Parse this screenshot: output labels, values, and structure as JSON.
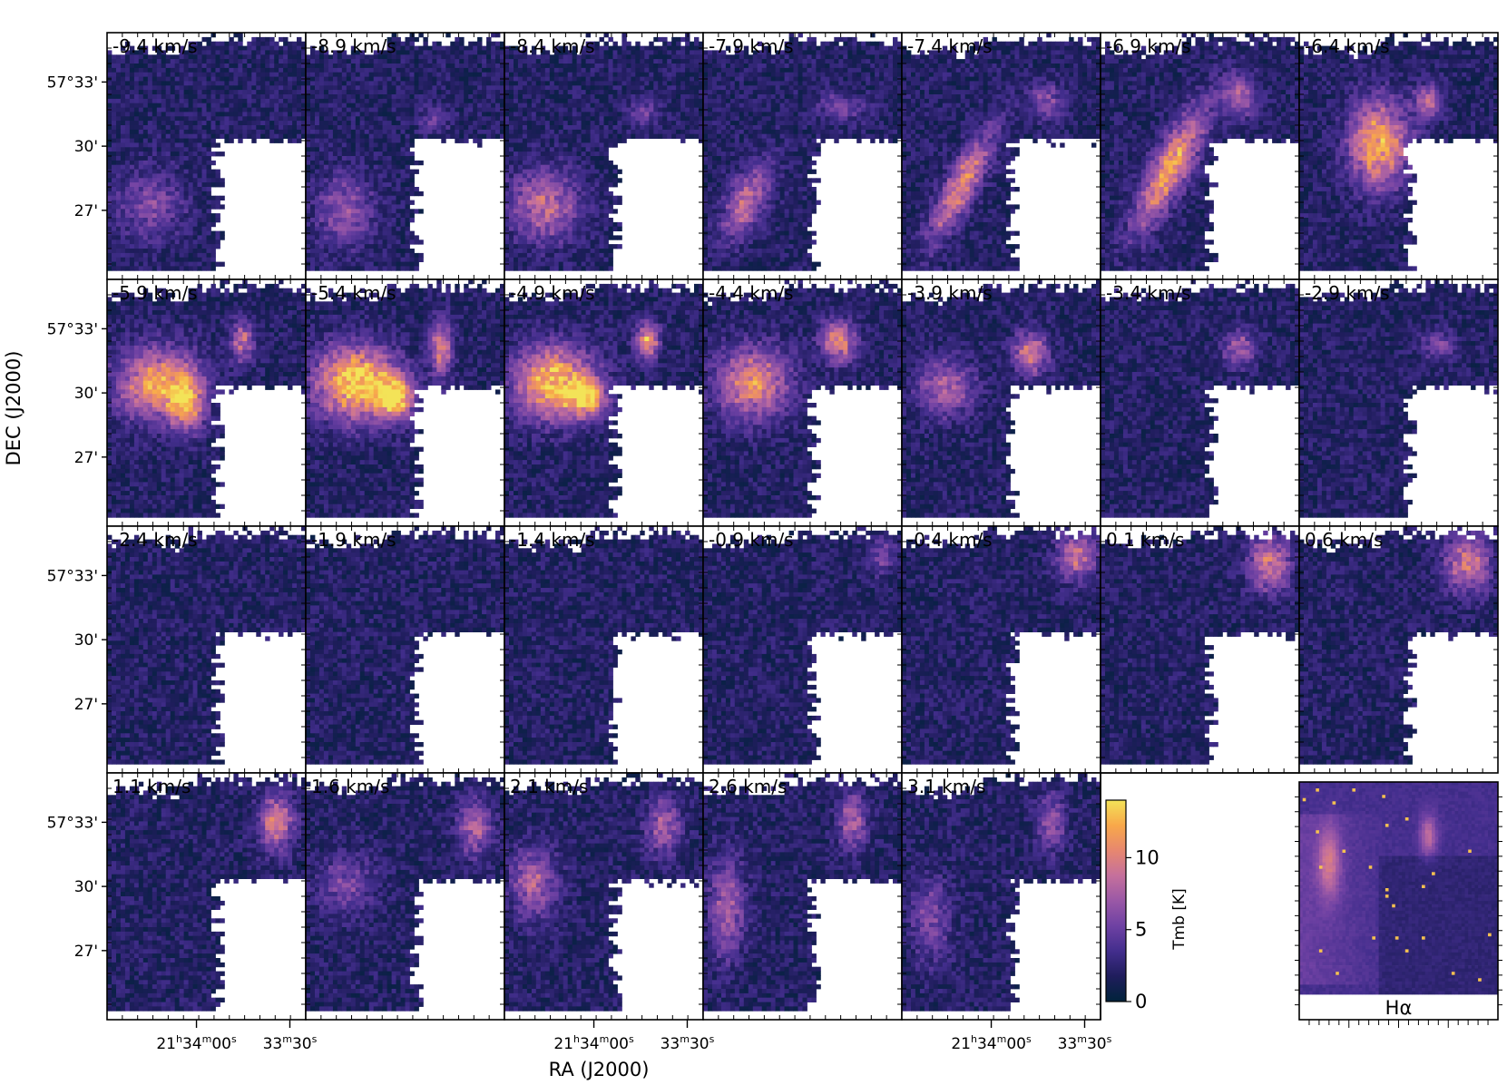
{
  "chart_data": {
    "type": "heatmap",
    "title": "",
    "xlabel": "RA (J2000)",
    "ylabel": "DEC (J2000)",
    "grid": false,
    "layout": {
      "rows": 4,
      "cols": 7
    },
    "channels": [
      {
        "label": "-9.4 km/s",
        "velocity": -9.4,
        "features": [
          {
            "x": 0.22,
            "y": 0.7,
            "sx": 0.12,
            "sy": 0.1,
            "amp": 4
          }
        ]
      },
      {
        "label": "-8.9 km/s",
        "velocity": -8.9,
        "features": [
          {
            "x": 0.2,
            "y": 0.72,
            "sx": 0.1,
            "sy": 0.1,
            "amp": 5
          },
          {
            "x": 0.65,
            "y": 0.35,
            "sx": 0.06,
            "sy": 0.04,
            "amp": 3
          }
        ]
      },
      {
        "label": "-8.4 km/s",
        "velocity": -8.4,
        "features": [
          {
            "x": 0.2,
            "y": 0.7,
            "sx": 0.12,
            "sy": 0.1,
            "amp": 7
          },
          {
            "x": 0.7,
            "y": 0.32,
            "sx": 0.05,
            "sy": 0.04,
            "amp": 4
          }
        ]
      },
      {
        "label": "-7.9 km/s",
        "velocity": -7.9,
        "features": [
          {
            "x": 0.22,
            "y": 0.68,
            "sx": 0.06,
            "sy": 0.12,
            "amp": 7,
            "ridge": true
          },
          {
            "x": 0.7,
            "y": 0.3,
            "sx": 0.08,
            "sy": 0.04,
            "amp": 4
          }
        ]
      },
      {
        "label": "-7.4 km/s",
        "velocity": -7.4,
        "features": [
          {
            "x": 0.3,
            "y": 0.62,
            "sx": 0.05,
            "sy": 0.18,
            "amp": 9,
            "ridge": true
          },
          {
            "x": 0.72,
            "y": 0.28,
            "sx": 0.06,
            "sy": 0.05,
            "amp": 5
          }
        ]
      },
      {
        "label": "-6.9 km/s",
        "velocity": -6.9,
        "features": [
          {
            "x": 0.35,
            "y": 0.55,
            "sx": 0.06,
            "sy": 0.2,
            "amp": 10,
            "ridge": true
          },
          {
            "x": 0.7,
            "y": 0.26,
            "sx": 0.06,
            "sy": 0.06,
            "amp": 6
          }
        ]
      },
      {
        "label": "-6.4 km/s",
        "velocity": -6.4,
        "features": [
          {
            "x": 0.4,
            "y": 0.45,
            "sx": 0.1,
            "sy": 0.12,
            "amp": 11
          },
          {
            "x": 0.65,
            "y": 0.28,
            "sx": 0.05,
            "sy": 0.05,
            "amp": 6
          }
        ]
      },
      {
        "label": "-5.9 km/s",
        "velocity": -5.9,
        "features": [
          {
            "x": 0.25,
            "y": 0.42,
            "sx": 0.14,
            "sy": 0.1,
            "amp": 10
          },
          {
            "x": 0.4,
            "y": 0.5,
            "sx": 0.06,
            "sy": 0.08,
            "amp": 9
          },
          {
            "x": 0.68,
            "y": 0.25,
            "sx": 0.04,
            "sy": 0.06,
            "amp": 7
          }
        ]
      },
      {
        "label": "-5.4 km/s",
        "velocity": -5.4,
        "features": [
          {
            "x": 0.25,
            "y": 0.42,
            "sx": 0.14,
            "sy": 0.1,
            "amp": 13
          },
          {
            "x": 0.45,
            "y": 0.48,
            "sx": 0.06,
            "sy": 0.06,
            "amp": 12
          },
          {
            "x": 0.68,
            "y": 0.28,
            "sx": 0.04,
            "sy": 0.08,
            "amp": 8
          }
        ]
      },
      {
        "label": "-4.9 km/s",
        "velocity": -4.9,
        "features": [
          {
            "x": 0.25,
            "y": 0.42,
            "sx": 0.14,
            "sy": 0.1,
            "amp": 12
          },
          {
            "x": 0.42,
            "y": 0.48,
            "sx": 0.06,
            "sy": 0.05,
            "amp": 10
          },
          {
            "x": 0.72,
            "y": 0.25,
            "sx": 0.04,
            "sy": 0.05,
            "amp": 10
          }
        ]
      },
      {
        "label": "-4.4 km/s",
        "velocity": -4.4,
        "features": [
          {
            "x": 0.25,
            "y": 0.42,
            "sx": 0.13,
            "sy": 0.1,
            "amp": 9
          },
          {
            "x": 0.68,
            "y": 0.25,
            "sx": 0.06,
            "sy": 0.06,
            "amp": 9
          }
        ]
      },
      {
        "label": "-3.9 km/s",
        "velocity": -3.9,
        "features": [
          {
            "x": 0.22,
            "y": 0.44,
            "sx": 0.1,
            "sy": 0.08,
            "amp": 6
          },
          {
            "x": 0.65,
            "y": 0.3,
            "sx": 0.06,
            "sy": 0.06,
            "amp": 8
          }
        ]
      },
      {
        "label": "-3.4 km/s",
        "velocity": -3.4,
        "features": [
          {
            "x": 0.7,
            "y": 0.28,
            "sx": 0.06,
            "sy": 0.05,
            "amp": 6
          }
        ]
      },
      {
        "label": "-2.9 km/s",
        "velocity": -2.9,
        "features": [
          {
            "x": 0.7,
            "y": 0.27,
            "sx": 0.06,
            "sy": 0.04,
            "amp": 4
          }
        ]
      },
      {
        "label": "-2.4 km/s",
        "velocity": -2.4,
        "features": []
      },
      {
        "label": "-1.9 km/s",
        "velocity": -1.9,
        "features": []
      },
      {
        "label": "-1.4 km/s",
        "velocity": -1.4,
        "features": []
      },
      {
        "label": "-0.9 km/s",
        "velocity": -0.9,
        "features": [
          {
            "x": 0.9,
            "y": 0.12,
            "sx": 0.05,
            "sy": 0.05,
            "amp": 4
          }
        ]
      },
      {
        "label": "-0.4 km/s",
        "velocity": -0.4,
        "features": [
          {
            "x": 0.88,
            "y": 0.12,
            "sx": 0.07,
            "sy": 0.07,
            "amp": 7
          }
        ]
      },
      {
        "label": "0.1 km/s",
        "velocity": 0.1,
        "features": [
          {
            "x": 0.85,
            "y": 0.15,
            "sx": 0.07,
            "sy": 0.08,
            "amp": 8
          }
        ]
      },
      {
        "label": "0.6 km/s",
        "velocity": 0.6,
        "features": [
          {
            "x": 0.85,
            "y": 0.15,
            "sx": 0.08,
            "sy": 0.08,
            "amp": 8
          }
        ]
      },
      {
        "label": "1.1 km/s",
        "velocity": 1.1,
        "features": [
          {
            "x": 0.85,
            "y": 0.2,
            "sx": 0.06,
            "sy": 0.08,
            "amp": 8
          }
        ]
      },
      {
        "label": "1.6 km/s",
        "velocity": 1.6,
        "features": [
          {
            "x": 0.85,
            "y": 0.22,
            "sx": 0.06,
            "sy": 0.08,
            "amp": 6
          },
          {
            "x": 0.2,
            "y": 0.45,
            "sx": 0.1,
            "sy": 0.08,
            "amp": 4
          }
        ]
      },
      {
        "label": "2.1 km/s",
        "velocity": 2.1,
        "features": [
          {
            "x": 0.8,
            "y": 0.22,
            "sx": 0.06,
            "sy": 0.08,
            "amp": 6
          },
          {
            "x": 0.15,
            "y": 0.45,
            "sx": 0.08,
            "sy": 0.1,
            "amp": 6
          }
        ]
      },
      {
        "label": "2.6 km/s",
        "velocity": 2.6,
        "features": [
          {
            "x": 0.75,
            "y": 0.2,
            "sx": 0.05,
            "sy": 0.08,
            "amp": 6
          },
          {
            "x": 0.12,
            "y": 0.55,
            "sx": 0.06,
            "sy": 0.14,
            "amp": 6
          }
        ]
      },
      {
        "label": "3.1 km/s",
        "velocity": 3.1,
        "features": [
          {
            "x": 0.75,
            "y": 0.2,
            "sx": 0.05,
            "sy": 0.08,
            "amp": 5
          },
          {
            "x": 0.15,
            "y": 0.6,
            "sx": 0.07,
            "sy": 0.12,
            "amp": 4
          }
        ]
      }
    ],
    "y_ticks": [
      "57°33'",
      "30'",
      "27'"
    ],
    "y_tick_values_arcmin": [
      33,
      30,
      27
    ],
    "x_ticks": [
      {
        "h": "21",
        "m": "34",
        "s": "00",
        "label": "21h34m00s"
      },
      {
        "m": "33",
        "s": "30",
        "label": "33m30s"
      }
    ],
    "x_tick_label_columns": [
      0,
      2,
      4
    ],
    "colorbar": {
      "label": "Tmb [K]",
      "range": [
        0,
        14
      ],
      "ticks": [
        0,
        5,
        10
      ],
      "colormap": [
        "#00233b",
        "#1f1d5c",
        "#432e8d",
        "#6e41a3",
        "#9a58a6",
        "#c5709c",
        "#e7876f",
        "#f8a84a",
        "#f3e358"
      ]
    },
    "inset": {
      "label": "Hα",
      "description": "Hα image of the region"
    }
  }
}
